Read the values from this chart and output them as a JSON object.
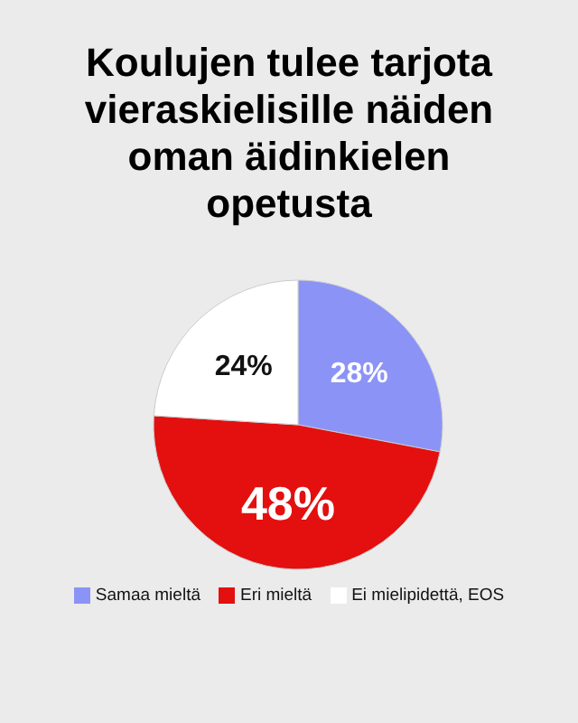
{
  "chart_data": {
    "type": "pie",
    "title": "Koulujen tulee tarjota vieraskielisille näiden oman äidinkielen opetusta",
    "categories": [
      "Samaa mieltä",
      "Eri mieltä",
      "Ei mielipidettä, EOS"
    ],
    "values": [
      28,
      48,
      24
    ],
    "colors": [
      "#8b93f7",
      "#e3100f",
      "#ffffff"
    ],
    "value_labels": [
      "28%",
      "48%",
      "24%"
    ],
    "legend": "bottom"
  }
}
